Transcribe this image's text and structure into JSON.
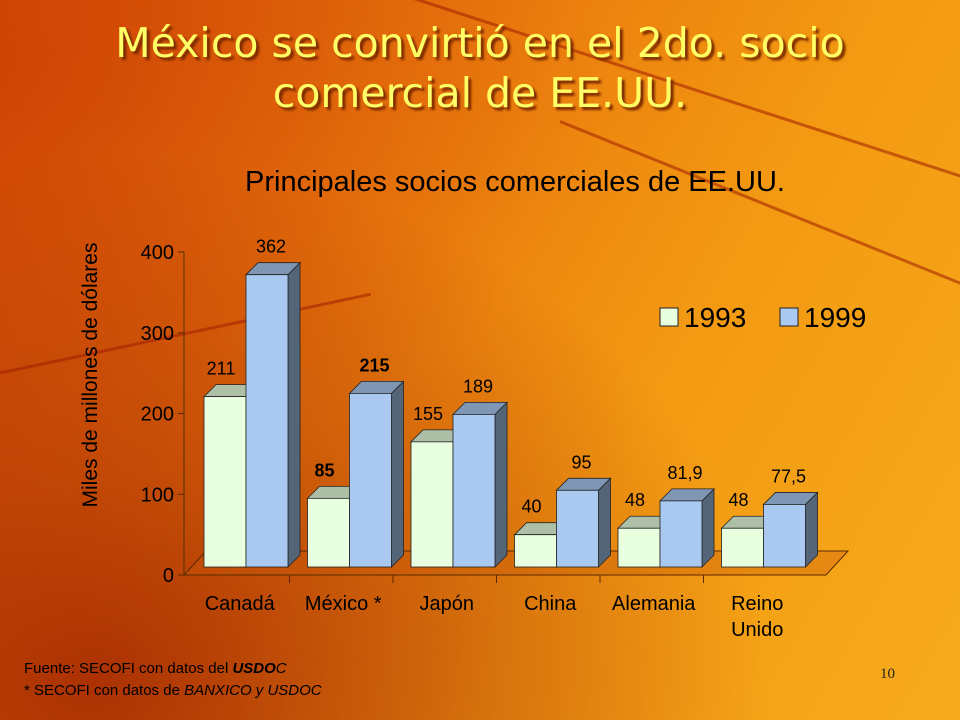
{
  "slide": {
    "title": "México se convirtió en el 2do. socio comercial de EE.UU.",
    "number": "10",
    "source_line1_a": "Fuente: SECOFI con datos del",
    "source_line1_b": "USDO",
    "source_line1_c": "C",
    "source_line2_a": "* SECOFI con datos de",
    "source_line2_b": "BANXICO",
    "source_line2_c": "y",
    "source_line2_d": "USDOC"
  },
  "chart_data": {
    "type": "bar",
    "title": "Principales socios comerciales de EE.UU.",
    "ylabel": "Miles de millones de dólares",
    "xlabel": "",
    "ylim": [
      0,
      400
    ],
    "yticks": [
      "0",
      "100",
      "200",
      "300",
      "400"
    ],
    "categories": [
      "Canadá",
      "México *",
      "Japón",
      "China",
      "Alemania",
      "Reino Unido"
    ],
    "series": [
      {
        "name": "1993",
        "color": "#e8ffe0",
        "values": [
          211,
          85,
          155,
          40,
          48,
          48
        ],
        "labels": [
          "211",
          "85",
          "155",
          "40",
          "48",
          "48"
        ]
      },
      {
        "name": "1999",
        "color": "#a9c9f0",
        "values": [
          362,
          215,
          189,
          95,
          81.9,
          77.5
        ],
        "labels": [
          "362",
          "215",
          "189",
          "95",
          "81,9",
          "77,5"
        ]
      }
    ],
    "legend_position": "top-right",
    "grid": false
  }
}
